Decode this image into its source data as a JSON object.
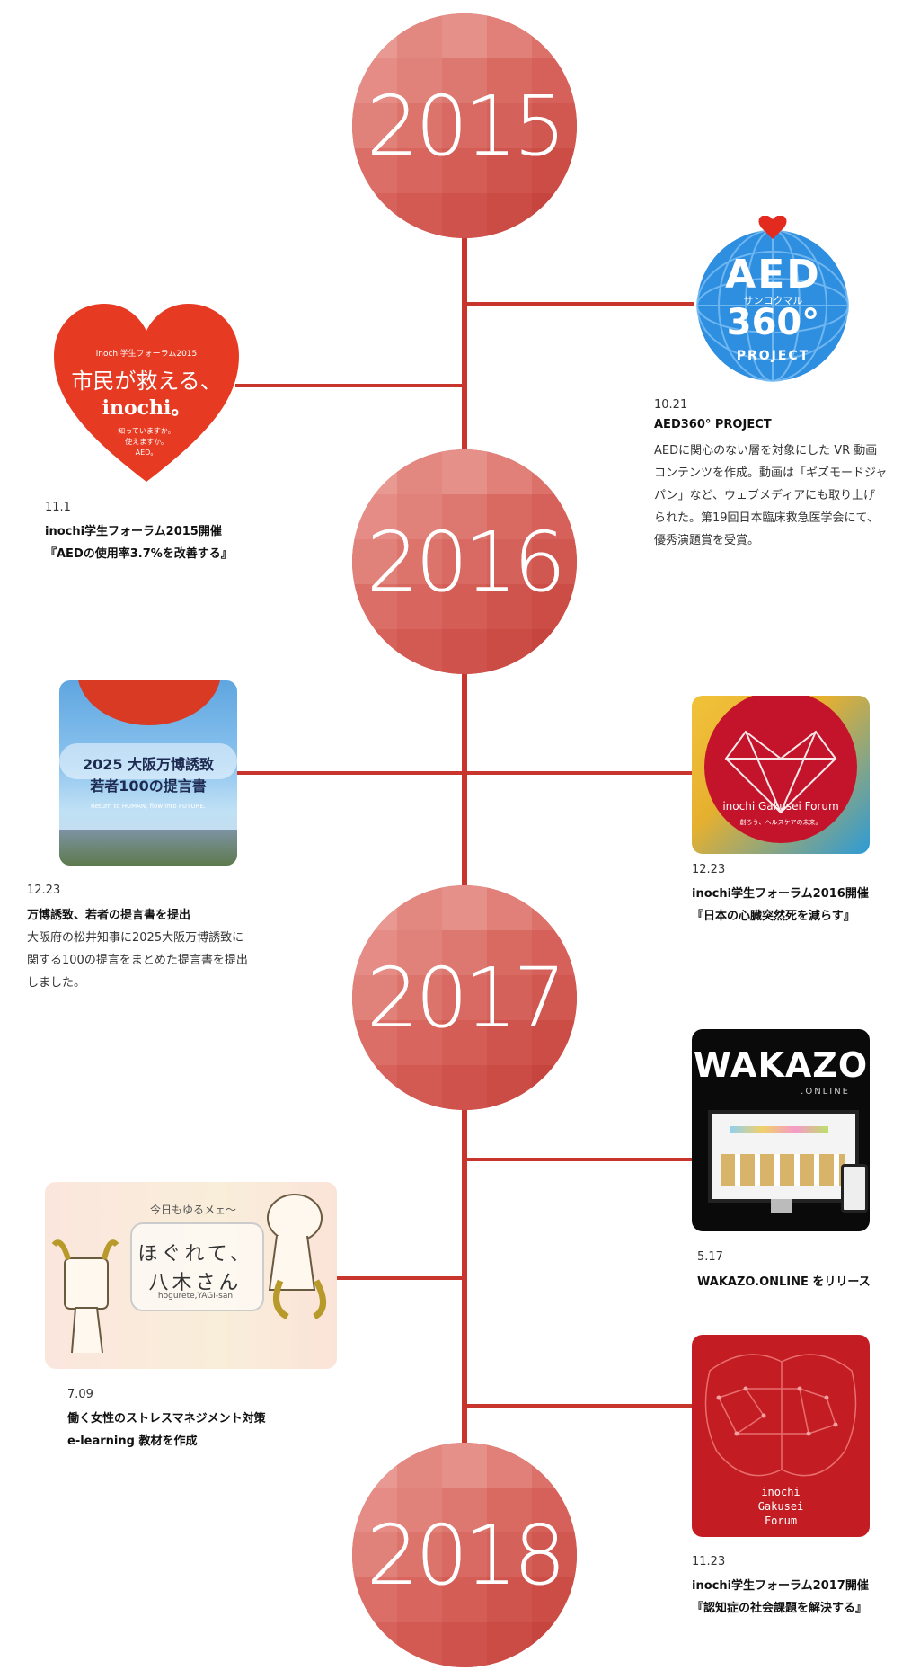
{
  "years": [
    "2015",
    "2016",
    "2017",
    "2018"
  ],
  "events": [
    {
      "id": "aed360",
      "date": "10.21",
      "title_lines": [
        "AED360° PROJECT"
      ],
      "desc_lines": [
        "AEDに関心のない層を対象にした VR 動画",
        "コンテンツを作成。動画は「ギズモードジャ",
        "パン」など、ウェブメディアにも取り上げ",
        "られた。第19回日本臨床救急医学会にて、",
        "優秀演題賞を受賞。"
      ],
      "thumb_text": {
        "main": "AED",
        "number": "360°",
        "sub": "PROJECT",
        "ruby": "サンロクマル"
      }
    },
    {
      "id": "forum2015",
      "date": "11.1",
      "title_lines": [
        "inochi学生フォーラム2015開催",
        "『AEDの使用率3.7%を改善する』"
      ],
      "desc_lines": [],
      "thumb_text": {
        "top": "inochi学生フォーラム2015",
        "main": "市民が救える、",
        "logo": "inochi。",
        "tag1": "知っていますか。",
        "tag2": "使えますか。",
        "tag3": "AED。"
      }
    },
    {
      "id": "expo",
      "date": "12.23",
      "title_lines": [
        "万博誘致、若者の提言書を提出"
      ],
      "desc_lines": [
        "大阪府の松井知事に2025大阪万博誘致に",
        "関する100の提言をまとめた提言書を提出",
        "しました。"
      ],
      "thumb_text": {
        "line1": "2025 大阪万博誘致",
        "line2": "若者100の提言書",
        "line3": "Return to HUMAN, flow into FUTURE."
      }
    },
    {
      "id": "forum2016",
      "date": "12.23",
      "title_lines": [
        "inochi学生フォーラム2016開催",
        "『日本の心臓突然死を減らす』"
      ],
      "desc_lines": [],
      "thumb_text": {
        "logo": "inochi Gakusei Forum",
        "tag": "創ろう、ヘルスケアの未来。"
      }
    },
    {
      "id": "wakazo",
      "date": "5.17",
      "title_lines": [
        "WAKAZO.ONLINE をリリース"
      ],
      "desc_lines": [],
      "thumb_text": {
        "main": "WAKAZO",
        "sub": ".ONLINE"
      }
    },
    {
      "id": "yagi",
      "date": "7.09",
      "title_lines": [
        "働く女性のストレスマネジメント対策",
        "e-learning 教材を作成"
      ],
      "desc_lines": [],
      "thumb_text": {
        "top": "今日もゆるメェ〜",
        "main": "ほぐれて、",
        "main2": "八木さん",
        "sub": "hogurete,YAGI-san"
      }
    },
    {
      "id": "forum2017",
      "date": "11.23",
      "title_lines": [
        "inochi学生フォーラム2017開催",
        "『認知症の社会課題を解決する』"
      ],
      "desc_lines": [],
      "thumb_text": {
        "line1": "inochi",
        "line2": "Gakusei",
        "line3": "Forum"
      }
    }
  ],
  "colors": {
    "line": "#c8352c",
    "circle": "#d9574f",
    "heart": "#e63a22",
    "aed_blue": "#2e8ee0"
  }
}
